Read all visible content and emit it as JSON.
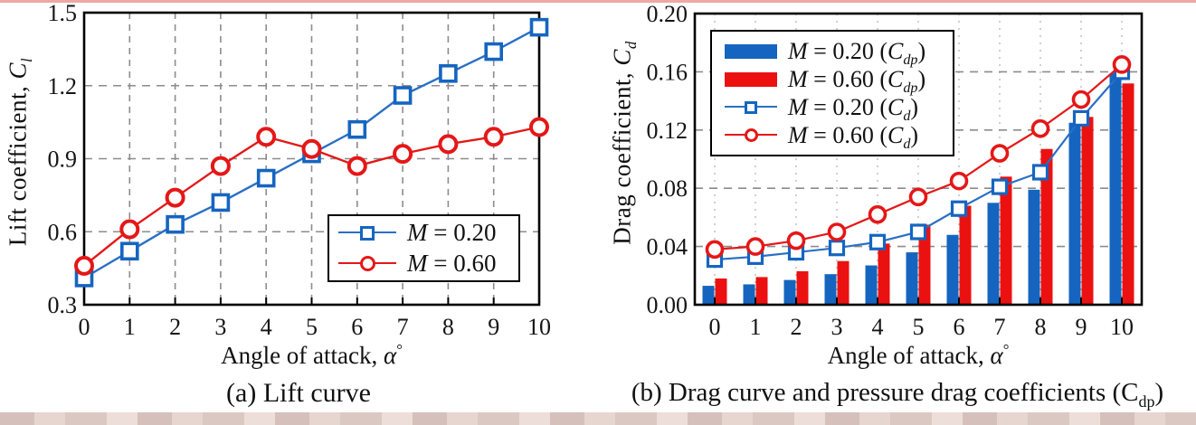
{
  "colors": {
    "blue": "#1565c0",
    "red": "#e51717",
    "blue_line": "#2a6fc4",
    "red_line": "#e51717",
    "bar_blue": "#1565c0",
    "bar_red": "#ec1111",
    "grid": "#8c8c8c",
    "axis": "#000000",
    "text": "#111111"
  },
  "chart_data": [
    {
      "id": "lift-curve",
      "type": "line",
      "x": [
        0,
        1,
        2,
        3,
        4,
        5,
        6,
        7,
        8,
        9,
        10
      ],
      "xticks": [
        "0",
        "1",
        "2",
        "3",
        "4",
        "5",
        "6",
        "7",
        "8",
        "9",
        "10"
      ],
      "yticks": [
        "0.3",
        "0.6",
        "0.9",
        "1.2",
        "1.5"
      ],
      "ytick_values": [
        0.3,
        0.6,
        0.9,
        1.2,
        1.5
      ],
      "ylim": [
        0.3,
        1.5
      ],
      "xlim": [
        0,
        10
      ],
      "grid": "dashed",
      "legend_position": "lower-right",
      "series": [
        {
          "name": "M = 0.20",
          "marker": "square",
          "color_key": "blue",
          "values": [
            0.41,
            0.52,
            0.63,
            0.72,
            0.82,
            0.92,
            1.02,
            1.16,
            1.25,
            1.34,
            1.44
          ]
        },
        {
          "name": "M = 0.60",
          "marker": "circle",
          "color_key": "red",
          "values": [
            0.46,
            0.61,
            0.74,
            0.87,
            0.99,
            0.94,
            0.87,
            0.92,
            0.96,
            0.99,
            1.03
          ]
        }
      ],
      "legend": [
        {
          "m": "M",
          "rest": " = 0.20"
        },
        {
          "m": "M",
          "rest": " = 0.60"
        }
      ],
      "ylabel": {
        "text": "Lift coefficient, ",
        "sym": "C",
        "sub": "l"
      },
      "xlabel": {
        "text": "Angle of attack, ",
        "sym": "α",
        "sup": "°"
      },
      "caption": {
        "text": "(a) Lift curve"
      }
    },
    {
      "id": "drag-curve",
      "type": "bar+line",
      "x": [
        0,
        1,
        2,
        3,
        4,
        5,
        6,
        7,
        8,
        9,
        10
      ],
      "xticks": [
        "0",
        "1",
        "2",
        "3",
        "4",
        "5",
        "6",
        "7",
        "8",
        "9",
        "10"
      ],
      "yticks": [
        "0.00",
        "0.04",
        "0.08",
        "0.12",
        "0.16",
        "0.20"
      ],
      "ytick_values": [
        0,
        0.04,
        0.08,
        0.12,
        0.16,
        0.2
      ],
      "ylim": [
        0,
        0.2
      ],
      "xlim": [
        0,
        10
      ],
      "grid": "dashed",
      "legend_position": "upper-left",
      "bar_series": [
        {
          "name": "M = 0.20 (Cdp)",
          "color_key": "bar_blue",
          "values": [
            0.013,
            0.014,
            0.017,
            0.021,
            0.027,
            0.036,
            0.048,
            0.07,
            0.079,
            0.125,
            0.159
          ]
        },
        {
          "name": "M = 0.60 (Cdp)",
          "color_key": "bar_red",
          "values": [
            0.018,
            0.019,
            0.023,
            0.03,
            0.042,
            0.055,
            0.068,
            0.088,
            0.107,
            0.129,
            0.152
          ]
        }
      ],
      "line_series": [
        {
          "name": "M = 0.20 (Cd)",
          "marker": "square",
          "color_key": "blue",
          "values": [
            0.031,
            0.033,
            0.036,
            0.039,
            0.043,
            0.05,
            0.066,
            0.081,
            0.091,
            0.128,
            0.16
          ]
        },
        {
          "name": "M = 0.60 (Cd)",
          "marker": "circle",
          "color_key": "red",
          "values": [
            0.038,
            0.04,
            0.044,
            0.05,
            0.062,
            0.074,
            0.085,
            0.104,
            0.121,
            0.141,
            0.165
          ]
        }
      ],
      "legend": [
        {
          "m": "M",
          "rest": " = 0.20 (",
          "c": "C",
          "sub": "dp",
          "close": ")",
          "swatch": "bar-blue"
        },
        {
          "m": "M",
          "rest": " = 0.60 (",
          "c": "C",
          "sub": "dp",
          "close": ")",
          "swatch": "bar-red"
        },
        {
          "m": "M",
          "rest": " = 0.20 (",
          "c": "C",
          "sub": "d",
          "close": ")",
          "swatch": "line-square-blue"
        },
        {
          "m": "M",
          "rest": " = 0.60 (",
          "c": "C",
          "sub": "d",
          "close": ")",
          "swatch": "line-circle-red"
        }
      ],
      "ylabel": {
        "text": "Drag coefficient, ",
        "sym": "C",
        "sub": "d"
      },
      "xlabel": {
        "text": "Angle of attack, ",
        "sym": "α",
        "sup": "°"
      },
      "caption": {
        "pre": "(b)  Drag curve and pressure drag coefficients (C",
        "sub": "dp",
        "post": ")"
      }
    }
  ]
}
